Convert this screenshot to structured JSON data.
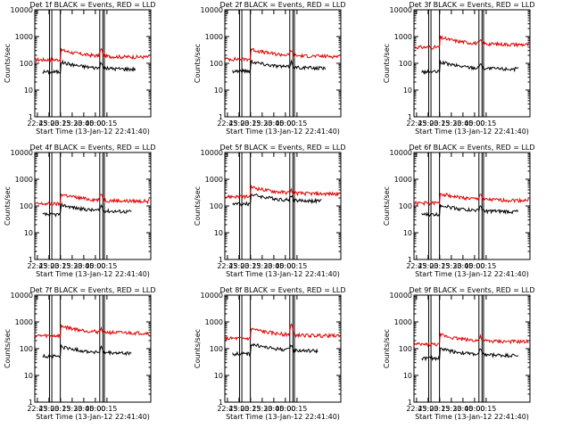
{
  "colors": {
    "events": "#000000",
    "lld": "#dd0000",
    "axis": "#000000",
    "background": "#ffffff"
  },
  "chart_data": [
    {
      "type": "line",
      "title": "Det 1f BLACK = Events, RED = LLD",
      "xlabel": "Start Time (13-Jan-12 22:41:40)",
      "ylabel": "Counts/sec",
      "xticks": [
        "22:45",
        "23:00",
        "23:15",
        "23:30",
        "23:45",
        "00:00",
        "00:15"
      ],
      "yticks": [
        "1",
        "10",
        "100",
        "1000",
        "10000"
      ],
      "yscale": "log",
      "ylim": [
        1,
        10000
      ],
      "events_level": 60,
      "lld_level": 170,
      "spike_level": 320,
      "events_end_minute": 130,
      "vlines_minutes": [
        19,
        22,
        33,
        84,
        88,
        90
      ]
    },
    {
      "type": "line",
      "title": "Det 2f BLACK = Events, RED = LLD",
      "xlabel": "Start Time (13-Jan-12 22:41:40)",
      "ylabel": "Counts/sec",
      "xticks": [
        "22:45",
        "23:00",
        "23:15",
        "23:30",
        "23:45",
        "00:00",
        "00:15"
      ],
      "yticks": [
        "1",
        "10",
        "100",
        "1000",
        "10000"
      ],
      "yscale": "log",
      "ylim": [
        1,
        10000
      ],
      "events_level": 65,
      "lld_level": 180,
      "spike_level": 300,
      "events_end_minute": 130,
      "vlines_minutes": [
        19,
        22,
        33,
        84,
        88,
        90
      ]
    },
    {
      "type": "line",
      "title": "Det 3f BLACK = Events, RED = LLD",
      "xlabel": "Start Time (13-Jan-12 22:41:40)",
      "ylabel": "Counts/sec",
      "xticks": [
        "22:45",
        "23:00",
        "23:15",
        "23:30",
        "23:45",
        "00:00",
        "00:15"
      ],
      "yticks": [
        "1",
        "10",
        "100",
        "1000",
        "10000"
      ],
      "yscale": "log",
      "ylim": [
        1,
        10000
      ],
      "events_level": 60,
      "lld_level": 500,
      "spike_level": 200,
      "events_end_minute": 135,
      "vlines_minutes": [
        19,
        22,
        33,
        84,
        88,
        90
      ]
    },
    {
      "type": "line",
      "title": "Det 4f BLACK = Events, RED = LLD",
      "xlabel": "Start Time (13-Jan-12 22:41:40)",
      "ylabel": "Counts/sec",
      "xticks": [
        "22:45",
        "23:00",
        "23:15",
        "23:30",
        "23:45",
        "00:00",
        "00:15"
      ],
      "yticks": [
        "1",
        "10",
        "100",
        "1000",
        "10000"
      ],
      "yscale": "log",
      "ylim": [
        1,
        10000
      ],
      "events_level": 60,
      "lld_level": 150,
      "spike_level": 280,
      "events_end_minute": 125,
      "vlines_minutes": [
        19,
        22,
        33,
        84,
        88,
        90
      ]
    },
    {
      "type": "line",
      "title": "Det 5f BLACK = Events, RED = LLD",
      "xlabel": "Start Time (13-Jan-12 22:41:40)",
      "ylabel": "Counts/sec",
      "xticks": [
        "22:45",
        "23:00",
        "23:15",
        "23:30",
        "23:45",
        "00:00",
        "00:15"
      ],
      "yticks": [
        "1",
        "10",
        "100",
        "1000",
        "10000"
      ],
      "yscale": "log",
      "ylim": [
        1,
        10000
      ],
      "events_level": 150,
      "lld_level": 280,
      "spike_level": 350,
      "events_end_minute": 125,
      "vlines_minutes": [
        19,
        22,
        33,
        84,
        88,
        90
      ]
    },
    {
      "type": "line",
      "title": "Det 6f BLACK = Events, RED = LLD",
      "xlabel": "Start Time (13-Jan-12 22:41:40)",
      "ylabel": "Counts/sec",
      "xticks": [
        "22:45",
        "23:00",
        "23:15",
        "23:30",
        "23:45",
        "00:00",
        "00:15"
      ],
      "yticks": [
        "1",
        "10",
        "100",
        "1000",
        "10000"
      ],
      "yscale": "log",
      "ylim": [
        1,
        10000
      ],
      "events_level": 60,
      "lld_level": 160,
      "spike_level": 270,
      "events_end_minute": 135,
      "vlines_minutes": [
        19,
        22,
        33,
        84,
        88,
        90
      ]
    },
    {
      "type": "line",
      "title": "Det 7f BLACK = Events, RED = LLD",
      "xlabel": "Start Time (13-Jan-12 22:41:40)",
      "ylabel": "Counts/sec",
      "xticks": [
        "22:45",
        "23:00",
        "23:15",
        "23:30",
        "23:45",
        "00:00",
        "00:15"
      ],
      "yticks": [
        "1",
        "10",
        "100",
        "1000",
        "10000"
      ],
      "yscale": "log",
      "ylim": [
        1,
        10000
      ],
      "events_level": 65,
      "lld_level": 380,
      "spike_level": 260,
      "events_end_minute": 125,
      "vlines_minutes": [
        19,
        22,
        33,
        84,
        88,
        90
      ]
    },
    {
      "type": "line",
      "title": "Det 8f BLACK = Events, RED = LLD",
      "xlabel": "Start Time (13-Jan-12 22:41:40)",
      "ylabel": "Counts/sec",
      "xticks": [
        "22:45",
        "23:00",
        "23:15",
        "23:30",
        "23:45",
        "00:00",
        "00:15"
      ],
      "yticks": [
        "1",
        "10",
        "100",
        "1000",
        "10000"
      ],
      "yscale": "log",
      "ylim": [
        1,
        10000
      ],
      "events_level": 80,
      "lld_level": 300,
      "spike_level": 800,
      "events_end_minute": 120,
      "vlines_minutes": [
        19,
        22,
        33,
        84,
        88,
        90
      ]
    },
    {
      "type": "line",
      "title": "Det 9f BLACK = Events, RED = LLD",
      "xlabel": "Start Time (13-Jan-12 22:41:40)",
      "ylabel": "Counts/sec",
      "xticks": [
        "22:45",
        "23:00",
        "23:15",
        "23:30",
        "23:45",
        "00:00",
        "00:15"
      ],
      "yticks": [
        "1",
        "10",
        "100",
        "1000",
        "10000"
      ],
      "yscale": "log",
      "ylim": [
        1,
        10000
      ],
      "events_level": 55,
      "lld_level": 180,
      "spike_level": 250,
      "events_end_minute": 135,
      "vlines_minutes": [
        19,
        22,
        33,
        84,
        88,
        90
      ]
    }
  ]
}
